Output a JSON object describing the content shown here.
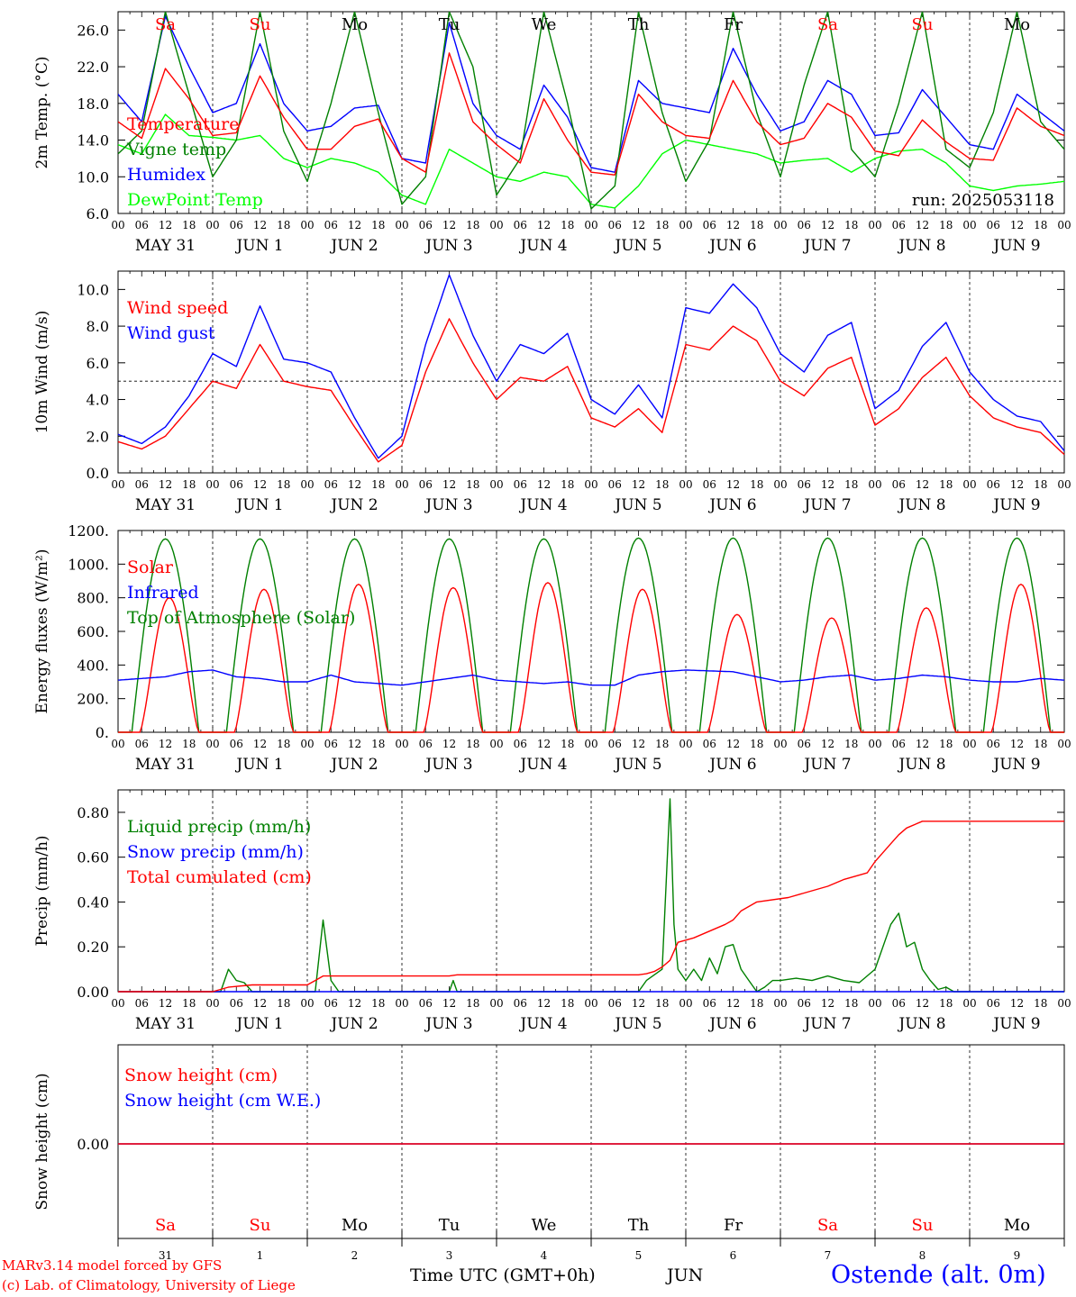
{
  "run_label": "run: 2025053118",
  "station": "Ostende (alt. 0m)",
  "credits": [
    "MARv3.14 model forced by GFS",
    "(c) Lab. of Climatology, University of Liege"
  ],
  "xaxis_title": "Time UTC (GMT+0h)",
  "month_label": "JUN",
  "hour_ticks": [
    "00",
    "06",
    "12",
    "18"
  ],
  "date_labels": [
    "MAY 31",
    "JUN  1",
    "JUN  2",
    "JUN  3",
    "JUN  4",
    "JUN  5",
    "JUN  6",
    "JUN  7",
    "JUN  8",
    "JUN  9"
  ],
  "weekdays": [
    "Sa",
    "Su",
    "Mo",
    "Tu",
    "We",
    "Th",
    "Fr",
    "Sa",
    "Su",
    "Mo"
  ],
  "day_numbers": [
    "31",
    "1",
    "2",
    "3",
    "4",
    "5",
    "6",
    "7",
    "8",
    "9"
  ],
  "colors": {
    "red": "#ff0000",
    "green": "#008000",
    "blue": "#0000ff",
    "lime": "#00ff00",
    "black": "#000000",
    "weekend": "#ff0000",
    "weekday": "#000000"
  },
  "chart_data": [
    {
      "type": "line",
      "ylabel": "2m Temp. (°C)",
      "ylim": [
        6.0,
        28.0
      ],
      "yticks": [
        6.0,
        10.0,
        14.0,
        18.0,
        22.0,
        26.0
      ],
      "ytick_labels": [
        "6.0",
        "10.0",
        "14.0",
        "18.0",
        "22.0",
        "26.0"
      ],
      "x_unit": "hours since 2025-05-31 00 UTC",
      "series": [
        {
          "name": "Temperature",
          "color": "#ff0000",
          "x": [
            0,
            6,
            12,
            18,
            24,
            30,
            36,
            42,
            48,
            54,
            60,
            66,
            72,
            78,
            84,
            90,
            96,
            102,
            108,
            114,
            120,
            126,
            132,
            138,
            144,
            150,
            156,
            162,
            168,
            174,
            180,
            186,
            192,
            198,
            204,
            210,
            216,
            222,
            228,
            234,
            240
          ],
          "y": [
            16.0,
            14.2,
            21.8,
            18.5,
            14.5,
            14.8,
            21.0,
            16.5,
            13.0,
            13.0,
            15.5,
            16.3,
            12.0,
            10.5,
            23.5,
            16.0,
            13.5,
            11.5,
            18.5,
            14.0,
            10.5,
            10.2,
            19.0,
            16.0,
            14.5,
            14.2,
            20.5,
            16.0,
            13.5,
            14.2,
            18.0,
            16.5,
            12.8,
            12.3,
            16.2,
            13.8,
            12.0,
            11.8,
            17.5,
            15.5,
            14.5
          ]
        },
        {
          "name": "Vigne temp",
          "color": "#008000",
          "x": [
            0,
            6,
            12,
            18,
            24,
            30,
            36,
            42,
            48,
            54,
            60,
            66,
            72,
            78,
            84,
            90,
            96,
            102,
            108,
            114,
            120,
            126,
            132,
            138,
            144,
            150,
            156,
            162,
            168,
            174,
            180,
            186,
            192,
            198,
            204,
            210,
            216,
            222,
            228,
            234,
            240
          ],
          "y": [
            12.5,
            15.0,
            28.0,
            19.0,
            10.0,
            14.0,
            28.0,
            15.0,
            9.5,
            18.0,
            28.0,
            17.0,
            7.0,
            10.0,
            28.0,
            22.0,
            8.0,
            12.0,
            28.0,
            18.0,
            6.5,
            9.0,
            28.0,
            17.0,
            9.5,
            14.0,
            28.0,
            17.0,
            10.0,
            20.0,
            28.0,
            13.0,
            10.0,
            18.0,
            28.0,
            13.0,
            11.0,
            17.0,
            28.0,
            16.0,
            13.0
          ]
        },
        {
          "name": "Humidex",
          "color": "#0000ff",
          "x": [
            0,
            6,
            12,
            18,
            24,
            30,
            36,
            42,
            48,
            54,
            60,
            66,
            72,
            78,
            84,
            90,
            96,
            102,
            108,
            114,
            120,
            126,
            132,
            138,
            144,
            150,
            156,
            162,
            168,
            174,
            180,
            186,
            192,
            198,
            204,
            210,
            216,
            222,
            228,
            234,
            240
          ],
          "y": [
            19.0,
            16.0,
            27.5,
            22.0,
            17.0,
            18.0,
            24.5,
            18.0,
            15.0,
            15.5,
            17.5,
            17.8,
            12.0,
            11.5,
            26.8,
            18.0,
            14.5,
            13.0,
            20.0,
            16.5,
            11.0,
            10.5,
            20.5,
            18.0,
            17.5,
            17.0,
            24.0,
            19.0,
            15.0,
            16.0,
            20.5,
            19.0,
            14.5,
            14.8,
            19.5,
            16.5,
            13.5,
            13.0,
            19.0,
            17.0,
            15.0
          ]
        },
        {
          "name": "DewPoint Temp",
          "color": "#00ff00",
          "x": [
            0,
            6,
            12,
            18,
            24,
            30,
            36,
            42,
            48,
            54,
            60,
            66,
            72,
            78,
            84,
            90,
            96,
            102,
            108,
            114,
            120,
            126,
            132,
            138,
            144,
            150,
            156,
            162,
            168,
            174,
            180,
            186,
            192,
            198,
            204,
            210,
            216,
            222,
            228,
            234,
            240
          ],
          "y": [
            13.5,
            12.5,
            16.8,
            14.5,
            14.3,
            14.0,
            14.5,
            12.0,
            11.0,
            12.0,
            11.5,
            10.5,
            8.0,
            7.0,
            13.0,
            11.5,
            10.0,
            9.5,
            10.5,
            10.0,
            7.0,
            6.6,
            9.0,
            12.5,
            14.0,
            13.5,
            13.0,
            12.5,
            11.5,
            11.8,
            12.0,
            10.5,
            12.0,
            12.8,
            13.0,
            11.5,
            9.0,
            8.5,
            9.0,
            9.2,
            9.5
          ]
        }
      ],
      "legend_placement": "left"
    },
    {
      "type": "line",
      "ylabel": "10m Wind (m/s)",
      "ylim": [
        0.0,
        11.0
      ],
      "yticks": [
        0.0,
        2.0,
        4.0,
        6.0,
        8.0,
        10.0
      ],
      "ytick_labels": [
        "0.0",
        "2.0",
        "4.0",
        "6.0",
        "8.0",
        "10.0"
      ],
      "reference_line": 5.0,
      "series": [
        {
          "name": "Wind speed",
          "color": "#ff0000",
          "x": [
            0,
            6,
            12,
            18,
            24,
            30,
            36,
            42,
            48,
            54,
            60,
            66,
            72,
            78,
            84,
            90,
            96,
            102,
            108,
            114,
            120,
            126,
            132,
            138,
            144,
            150,
            156,
            162,
            168,
            174,
            180,
            186,
            192,
            198,
            204,
            210,
            216,
            222,
            228,
            234,
            240
          ],
          "y": [
            1.7,
            1.3,
            2.0,
            3.5,
            5.0,
            4.6,
            7.0,
            5.0,
            4.7,
            4.5,
            2.5,
            0.6,
            1.5,
            5.5,
            8.4,
            6.0,
            4.0,
            5.2,
            5.0,
            5.8,
            3.0,
            2.5,
            3.5,
            2.2,
            7.0,
            6.7,
            8.0,
            7.2,
            5.0,
            4.2,
            5.7,
            6.3,
            2.6,
            3.5,
            5.2,
            6.3,
            4.2,
            3.0,
            2.5,
            2.2,
            1.0
          ]
        },
        {
          "name": "Wind gust",
          "color": "#0000ff",
          "x": [
            0,
            6,
            12,
            18,
            24,
            30,
            36,
            42,
            48,
            54,
            60,
            66,
            72,
            78,
            84,
            90,
            96,
            102,
            108,
            114,
            120,
            126,
            132,
            138,
            144,
            150,
            156,
            162,
            168,
            174,
            180,
            186,
            192,
            198,
            204,
            210,
            216,
            222,
            228,
            234,
            240
          ],
          "y": [
            2.1,
            1.6,
            2.5,
            4.2,
            6.5,
            5.8,
            9.1,
            6.2,
            6.0,
            5.5,
            3.0,
            0.8,
            2.0,
            7.0,
            10.8,
            7.5,
            5.0,
            7.0,
            6.5,
            7.6,
            4.0,
            3.2,
            4.8,
            3.0,
            9.0,
            8.7,
            10.3,
            9.0,
            6.5,
            5.5,
            7.5,
            8.2,
            3.5,
            4.5,
            6.9,
            8.2,
            5.5,
            4.0,
            3.1,
            2.8,
            1.2
          ]
        }
      ],
      "legend_placement": "left"
    },
    {
      "type": "line",
      "ylabel": "Energy fluxes (W/m²)",
      "ylim": [
        0,
        1200
      ],
      "yticks": [
        0,
        200,
        400,
        600,
        800,
        1000,
        1200
      ],
      "ytick_labels": [
        "0.",
        "200.",
        "400.",
        "600.",
        "800.",
        "1000.",
        "1200."
      ],
      "series": [
        {
          "name": "Solar",
          "color": "#ff0000",
          "peaks_x": [
            13,
            37,
            61,
            85,
            109,
            133,
            157,
            181,
            205,
            229
          ],
          "peaks_y": [
            800,
            850,
            880,
            860,
            890,
            850,
            700,
            680,
            740,
            880
          ]
        },
        {
          "name": "Infrared",
          "color": "#0000ff",
          "x": [
            0,
            6,
            12,
            18,
            24,
            30,
            36,
            42,
            48,
            54,
            60,
            66,
            72,
            78,
            84,
            90,
            96,
            102,
            108,
            114,
            120,
            126,
            132,
            138,
            144,
            150,
            156,
            162,
            168,
            174,
            180,
            186,
            192,
            198,
            204,
            210,
            216,
            222,
            228,
            234,
            240
          ],
          "y": [
            310,
            320,
            330,
            360,
            370,
            330,
            320,
            300,
            300,
            340,
            300,
            290,
            280,
            300,
            320,
            340,
            310,
            300,
            290,
            300,
            280,
            280,
            340,
            360,
            370,
            365,
            360,
            330,
            300,
            310,
            330,
            340,
            310,
            320,
            340,
            330,
            310,
            300,
            300,
            320,
            310
          ]
        },
        {
          "name": "Top of Atmosphere (Solar)",
          "color": "#008000",
          "peaks_x": [
            12,
            36,
            60,
            84,
            108,
            132,
            156,
            180,
            204,
            228
          ],
          "peaks_y": [
            1150,
            1150,
            1150,
            1150,
            1150,
            1155,
            1155,
            1155,
            1155,
            1155
          ]
        }
      ],
      "legend_placement": "left"
    },
    {
      "type": "line",
      "ylabel": "Precip (mm/h)",
      "ylim": [
        0.0,
        0.9
      ],
      "yticks": [
        0.0,
        0.2,
        0.4,
        0.6,
        0.8
      ],
      "ytick_labels": [
        "0.00",
        "0.20",
        "0.40",
        "0.60",
        "0.80"
      ],
      "series": [
        {
          "name": "Liquid precip (mm/h)",
          "color": "#008000",
          "x": [
            0,
            20,
            26,
            28,
            30,
            32,
            34,
            50,
            52,
            54,
            56,
            84,
            85,
            86,
            120,
            132,
            134,
            138,
            140,
            141,
            142,
            144,
            146,
            148,
            150,
            152,
            154,
            156,
            158,
            160,
            162,
            164,
            166,
            168,
            172,
            176,
            180,
            184,
            188,
            192,
            196,
            198,
            200,
            202,
            204,
            206,
            208,
            210,
            212,
            216,
            240
          ],
          "y": [
            0,
            0,
            0,
            0.1,
            0.05,
            0.04,
            0,
            0,
            0.32,
            0.05,
            0,
            0,
            0.05,
            0,
            0,
            0,
            0.05,
            0.1,
            0.86,
            0.3,
            0.1,
            0.05,
            0.1,
            0.05,
            0.15,
            0.08,
            0.2,
            0.21,
            0.1,
            0.05,
            0,
            0.02,
            0.05,
            0.05,
            0.06,
            0.05,
            0.07,
            0.05,
            0.04,
            0.1,
            0.3,
            0.35,
            0.2,
            0.22,
            0.1,
            0.05,
            0.01,
            0.02,
            0,
            0,
            0
          ]
        },
        {
          "name": "Snow precip (mm/h)",
          "color": "#0000ff",
          "x": [
            0,
            240
          ],
          "y": [
            0,
            0
          ]
        },
        {
          "name": "Total cumulated (cm)",
          "color": "#ff0000",
          "x": [
            0,
            24,
            28,
            34,
            48,
            50,
            52,
            56,
            84,
            86,
            132,
            134,
            136,
            138,
            140,
            142,
            144,
            146,
            150,
            154,
            156,
            158,
            162,
            170,
            176,
            180,
            184,
            186,
            190,
            192,
            196,
            198,
            200,
            204,
            208,
            240
          ],
          "y": [
            0,
            0,
            0.02,
            0.03,
            0.03,
            0.05,
            0.07,
            0.07,
            0.07,
            0.075,
            0.075,
            0.08,
            0.09,
            0.11,
            0.14,
            0.22,
            0.23,
            0.24,
            0.27,
            0.3,
            0.32,
            0.36,
            0.4,
            0.42,
            0.45,
            0.47,
            0.5,
            0.51,
            0.53,
            0.58,
            0.66,
            0.7,
            0.73,
            0.76,
            0.76,
            0.76
          ]
        }
      ],
      "legend_placement": "left"
    },
    {
      "type": "line",
      "ylabel": "Snow height (cm)",
      "yticks": [
        0.0
      ],
      "ytick_labels": [
        "0.00"
      ],
      "series": [
        {
          "name": "Snow height (cm)",
          "color": "#ff0000",
          "x": [
            0,
            240
          ],
          "y": [
            0,
            0
          ]
        },
        {
          "name": "Snow height (cm W.E.)",
          "color": "#0000ff",
          "x": [
            0,
            240
          ],
          "y": [
            0,
            0
          ]
        }
      ],
      "legend_placement": "left"
    }
  ]
}
